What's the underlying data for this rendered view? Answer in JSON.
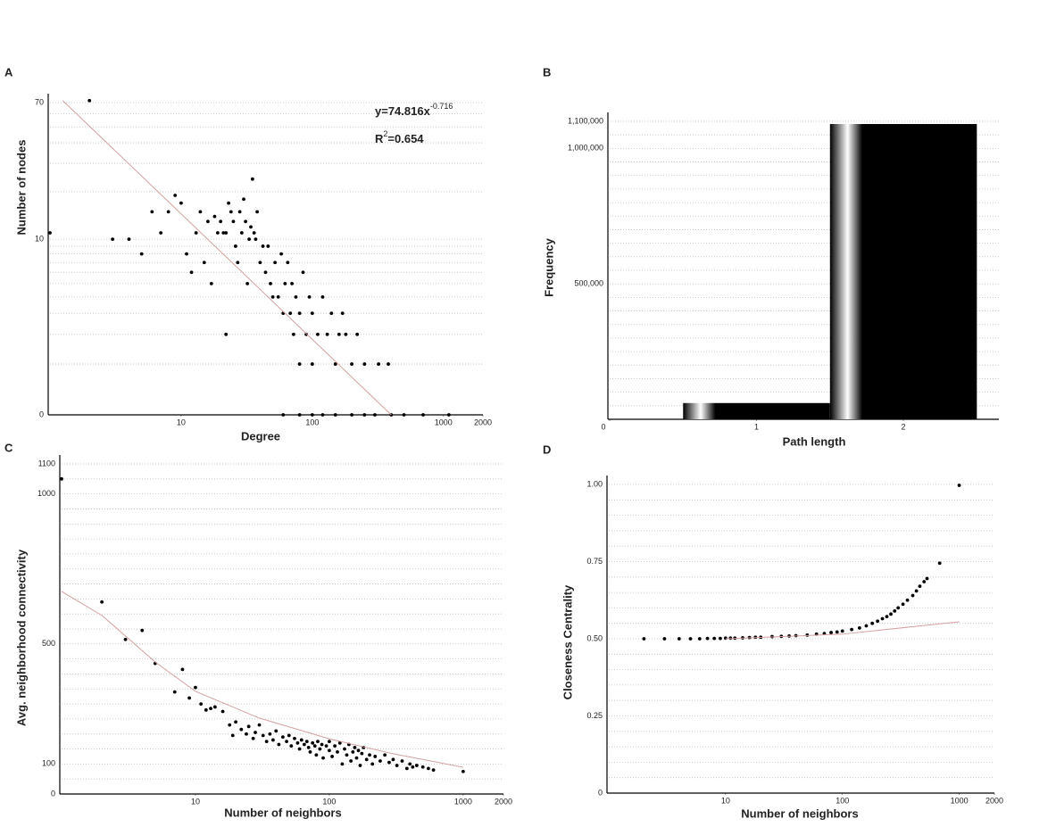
{
  "chart_data": [
    {
      "panel_label": "A",
      "type": "scatter",
      "x_label": "Degree",
      "y_label": "Number of nodes",
      "xscale": "log",
      "yscale": "log1p",
      "xlim": [
        1,
        2000
      ],
      "ylim": [
        0,
        70
      ],
      "xticks": [
        10,
        100,
        1000,
        2000
      ],
      "yticks": [
        0,
        10,
        70
      ],
      "minor_yticks": [
        1,
        2,
        3,
        4,
        5,
        6,
        7,
        8,
        9,
        20,
        30,
        40,
        50,
        60
      ],
      "grid": true,
      "color": "#000000",
      "x": [
        2,
        1,
        3,
        4,
        5,
        6,
        7,
        8,
        9,
        10,
        11,
        12,
        13,
        14,
        15,
        16,
        17,
        18,
        19,
        20,
        21,
        22,
        22,
        23,
        24,
        25,
        26,
        27,
        28,
        29,
        30,
        31,
        32,
        33,
        34,
        35,
        36,
        37,
        38,
        40,
        42,
        44,
        46,
        48,
        50,
        52,
        55,
        58,
        60,
        62,
        65,
        68,
        70,
        72,
        75,
        80,
        80,
        85,
        90,
        95,
        100,
        100,
        110,
        120,
        130,
        140,
        150,
        160,
        170,
        180,
        200,
        220,
        250,
        320,
        380,
        60,
        80,
        100,
        120,
        150,
        200,
        250,
        300,
        400,
        500,
        700,
        1100
      ],
      "values": [
        72,
        11,
        10,
        10,
        8,
        15,
        11,
        15,
        19,
        17,
        8,
        6,
        11,
        15,
        7,
        13,
        5,
        14,
        11,
        13,
        11,
        2,
        11,
        17,
        15,
        13,
        9,
        7,
        15,
        11,
        18,
        13,
        5,
        10,
        12,
        24,
        11,
        10,
        15,
        7,
        9,
        6,
        9,
        5,
        4,
        7,
        4,
        8,
        3,
        5,
        7,
        3,
        5,
        2,
        4,
        3,
        1,
        6,
        2,
        4,
        3,
        1,
        2,
        4,
        2,
        3,
        1,
        2,
        3,
        2,
        1,
        2,
        1,
        1,
        1,
        0,
        0,
        0,
        0,
        0,
        0,
        0,
        0,
        0,
        0,
        0,
        0
      ],
      "trend": {
        "color": "#d4a0a0",
        "x": [
          1.25,
          400
        ],
        "values": [
          72,
          0
        ]
      },
      "annotations": [
        {
          "text": "y=74.816x",
          "sup": "-0.716"
        },
        {
          "text": "R",
          "sup": "2",
          "tail": "=0.654"
        }
      ]
    },
    {
      "panel_label": "B",
      "type": "bar",
      "x_label": "Path length",
      "y_label": "Frequency",
      "xlim": [
        0,
        2.65
      ],
      "ylim": [
        0,
        1100000
      ],
      "xticks": [
        0,
        1,
        2
      ],
      "yticks": [
        {
          "value": 500000,
          "label": "500,000"
        },
        {
          "value": 1000000,
          "label": "1,000,000"
        },
        {
          "value": 1100000,
          "label": "1,100,000"
        }
      ],
      "minor_yticks": [
        50000,
        100000,
        150000,
        200000,
        250000,
        300000,
        350000,
        400000,
        450000,
        550000,
        600000,
        650000,
        700000,
        750000,
        800000,
        850000,
        900000,
        950000,
        1050000
      ],
      "grid": true,
      "color": "#000000",
      "bar_width": 1,
      "x": [
        1,
        2
      ],
      "values": [
        60000,
        1090000
      ]
    },
    {
      "panel_label": "C",
      "type": "scatter",
      "x_label": "Number of neighbors",
      "y_label": "Avg. neighborhood connectivity",
      "xscale": "log",
      "xlim": [
        1,
        2000
      ],
      "ylim": [
        0,
        1100
      ],
      "xticks": [
        10,
        100,
        1000,
        2000
      ],
      "yticks": [
        0,
        100,
        500,
        1000,
        1100
      ],
      "minor_yticks": [
        50,
        150,
        200,
        250,
        300,
        350,
        400,
        450,
        550,
        600,
        650,
        700,
        750,
        800,
        850,
        900,
        950,
        1050
      ],
      "grid": true,
      "color": "#000000",
      "x": [
        1,
        2,
        3,
        4,
        5,
        7,
        8,
        9,
        10,
        11,
        12,
        13,
        14,
        16,
        18,
        19,
        20,
        22,
        24,
        25,
        27,
        28,
        30,
        32,
        34,
        36,
        38,
        40,
        42,
        45,
        48,
        50,
        52,
        55,
        58,
        60,
        62,
        65,
        68,
        70,
        72,
        75,
        78,
        80,
        82,
        85,
        88,
        90,
        95,
        100,
        100,
        105,
        110,
        115,
        120,
        125,
        130,
        135,
        140,
        145,
        150,
        155,
        160,
        165,
        170,
        175,
        180,
        190,
        200,
        210,
        220,
        240,
        260,
        280,
        300,
        320,
        350,
        380,
        400,
        420,
        450,
        500,
        550,
        600,
        1000
      ],
      "values": [
        1050,
        640,
        515,
        545,
        435,
        340,
        415,
        320,
        355,
        300,
        280,
        285,
        290,
        275,
        230,
        195,
        240,
        215,
        200,
        225,
        185,
        205,
        230,
        195,
        175,
        200,
        180,
        210,
        165,
        190,
        175,
        195,
        160,
        185,
        170,
        150,
        180,
        165,
        175,
        155,
        140,
        170,
        160,
        130,
        175,
        150,
        165,
        120,
        160,
        145,
        175,
        125,
        160,
        140,
        170,
        100,
        150,
        130,
        165,
        110,
        140,
        155,
        120,
        145,
        95,
        135,
        155,
        115,
        130,
        100,
        125,
        110,
        130,
        105,
        115,
        95,
        110,
        85,
        100,
        90,
        95,
        90,
        85,
        80,
        75
      ],
      "trend": {
        "color": "#d4a0a0",
        "x": [
          1,
          2,
          5,
          10,
          30,
          100,
          300,
          1000
        ],
        "values": [
          675,
          595,
          440,
          342,
          253,
          184,
          134,
          89
        ]
      }
    },
    {
      "panel_label": "D",
      "type": "scatter",
      "x_label": "Number of neighbors",
      "y_label": "Closeness Centrality",
      "xscale": "log",
      "xlim": [
        1,
        2000
      ],
      "ylim": [
        0,
        1
      ],
      "xticks": [
        10,
        100,
        1000,
        2000
      ],
      "yticks": [
        0,
        0.25,
        {
          "value": 0.5,
          "label": "0.50"
        },
        0.75,
        {
          "value": 1,
          "label": "1.00"
        }
      ],
      "minor_yticks": [
        0.05,
        0.1,
        0.15,
        0.2,
        0.3,
        0.35,
        0.4,
        0.45,
        0.55,
        0.6,
        0.65,
        0.7,
        0.8,
        0.85,
        0.9,
        0.95
      ],
      "grid": true,
      "color": "#000000",
      "x": [
        2,
        3,
        4,
        5,
        6,
        7,
        8,
        9,
        10,
        11,
        12,
        14,
        16,
        18,
        20,
        25,
        30,
        35,
        40,
        50,
        60,
        70,
        80,
        90,
        100,
        120,
        140,
        160,
        180,
        200,
        220,
        240,
        260,
        280,
        300,
        330,
        360,
        400,
        430,
        460,
        500,
        530,
        680,
        1000
      ],
      "values": [
        0.5,
        0.5,
        0.5,
        0.5,
        0.5,
        0.501,
        0.501,
        0.501,
        0.502,
        0.502,
        0.502,
        0.503,
        0.504,
        0.505,
        0.505,
        0.507,
        0.508,
        0.509,
        0.51,
        0.512,
        0.515,
        0.517,
        0.52,
        0.522,
        0.525,
        0.53,
        0.535,
        0.542,
        0.55,
        0.557,
        0.565,
        0.572,
        0.58,
        0.59,
        0.6,
        0.612,
        0.625,
        0.64,
        0.655,
        0.67,
        0.685,
        0.695,
        0.745,
        0.997
      ],
      "trend": {
        "color": "#d4a0a0",
        "x": [
          10,
          100,
          1000
        ],
        "values": [
          0.5,
          0.515,
          0.555
        ]
      }
    }
  ]
}
